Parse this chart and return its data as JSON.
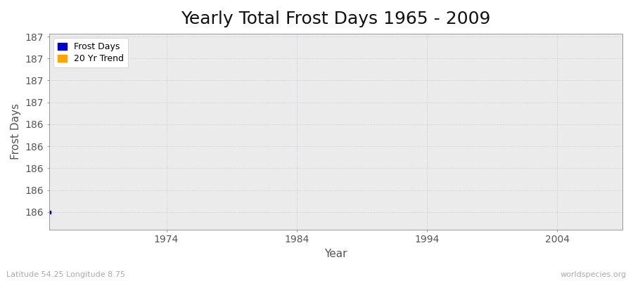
{
  "title": "Yearly Total Frost Days 1965 - 2009",
  "xlabel": "Year",
  "ylabel": "Frost Days",
  "subtitle": "Latitude 54.25 Longitude 8.75",
  "watermark": "worldspecies.org",
  "xmin": 1965,
  "xmax": 2009,
  "ymin": 185.88,
  "ymax": 187.22,
  "ytick_positions": [
    186.0,
    186.15,
    186.3,
    186.45,
    186.6,
    186.75,
    186.9,
    187.05,
    187.2
  ],
  "ytick_labels": [
    "186",
    "186",
    "186",
    "186",
    "186",
    "187",
    "187",
    "187",
    "187"
  ],
  "xticks": [
    1974,
    1984,
    1994,
    2004
  ],
  "frost_days_x": [
    1965
  ],
  "frost_days_y": [
    186.0
  ],
  "trend_x": [],
  "trend_y": [],
  "frost_color": "#0000cc",
  "trend_color": "#ffa500",
  "figure_bg_color": "#ffffff",
  "plot_bg_color": "#ebebeb",
  "grid_color": "#d0d0d8",
  "title_fontsize": 18,
  "axis_label_fontsize": 11,
  "tick_fontsize": 10,
  "legend_frost": "Frost Days",
  "legend_trend": "20 Yr Trend"
}
